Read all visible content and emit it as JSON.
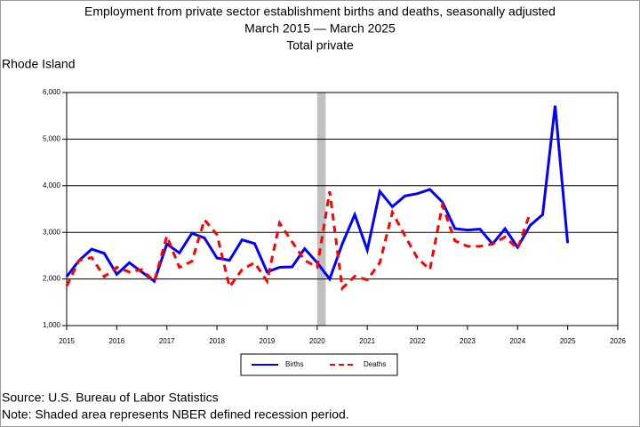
{
  "chart_data": {
    "type": "line",
    "title": [
      "Employment from private sector establishment births and deaths, seasonally adjusted",
      "March 2015 — March 2025",
      "Total private"
    ],
    "subtitle": "Rhode Island",
    "x": [
      2015,
      2015.25,
      2015.5,
      2015.75,
      2016,
      2016.25,
      2016.5,
      2016.75,
      2017,
      2017.25,
      2017.5,
      2017.75,
      2018,
      2018.25,
      2018.5,
      2018.75,
      2019,
      2019.25,
      2019.5,
      2019.75,
      2020,
      2020.25,
      2020.5,
      2020.75,
      2021,
      2021.25,
      2021.5,
      2021.75,
      2022,
      2022.25,
      2022.5,
      2022.75,
      2023,
      2023.25,
      2023.5,
      2023.75,
      2024,
      2024.25,
      2024.5,
      2024.75,
      2025
    ],
    "series": [
      {
        "name": "Births",
        "color": "#0000ff",
        "dash": false,
        "values": [
          2050,
          2400,
          2640,
          2550,
          2100,
          2350,
          2150,
          1950,
          2750,
          2560,
          2980,
          2880,
          2450,
          2400,
          2840,
          2760,
          2150,
          2250,
          2260,
          2650,
          2350,
          2000,
          2750,
          3380,
          2620,
          3880,
          3550,
          3780,
          3830,
          3920,
          3650,
          3080,
          3050,
          3070,
          2750,
          3080,
          2680,
          3150,
          3380,
          5720,
          2770
        ]
      },
      {
        "name": "Deaths",
        "color": "#ff0000",
        "dash": true,
        "values": [
          1850,
          2400,
          2460,
          2050,
          2250,
          2150,
          2200,
          1950,
          2920,
          2250,
          2380,
          3270,
          2950,
          1830,
          2200,
          2350,
          1950,
          3200,
          2800,
          2400,
          2250,
          3880,
          1800,
          2060,
          1980,
          2350,
          3430,
          2930,
          2450,
          2200,
          3580,
          2820,
          2700,
          2700,
          2750,
          2900,
          2650,
          3420,
          null,
          null,
          null
        ]
      }
    ],
    "recession": [
      2020,
      2020.17
    ],
    "xlim": [
      2015,
      2026
    ],
    "xticks": [
      2015,
      2016,
      2017,
      2018,
      2019,
      2020,
      2021,
      2022,
      2023,
      2024,
      2025,
      2026
    ],
    "ylim": [
      1000,
      6000
    ],
    "yticks": [
      {
        "value": 1000,
        "label": "1,000"
      },
      {
        "value": 2000,
        "label": "2,000"
      },
      {
        "value": 3000,
        "label": "3,000"
      },
      {
        "value": 4000,
        "label": "4,000"
      },
      {
        "value": 5000,
        "label": "5,000"
      },
      {
        "value": 6000,
        "label": "6,000"
      }
    ],
    "grid": true,
    "legend": "bottom",
    "source": "Source: U.S. Bureau of Labor Statistics",
    "note": "Note: Shaded area represents NBER defined recession period."
  }
}
